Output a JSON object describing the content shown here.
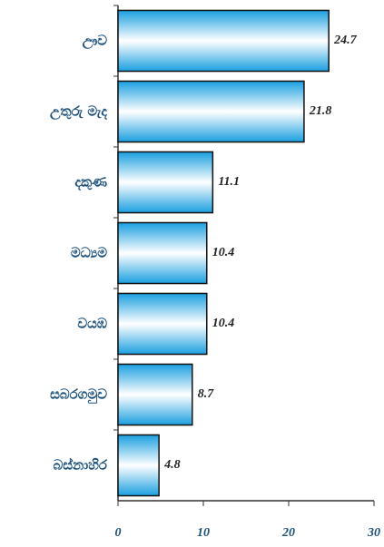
{
  "chart_data": {
    "type": "barh",
    "categories": [
      "ඌව",
      "උතුරු මැද",
      "දකුණ",
      "මධ්‍යම",
      "වයඹ",
      "සබරගමුව",
      "බස්නාහිර"
    ],
    "values": [
      24.7,
      21.8,
      11.1,
      10.4,
      10.4,
      8.7,
      4.8
    ],
    "color": "#1a9fe0",
    "xlim": [
      0,
      30
    ],
    "xticks": [
      0,
      10,
      20,
      30
    ]
  }
}
